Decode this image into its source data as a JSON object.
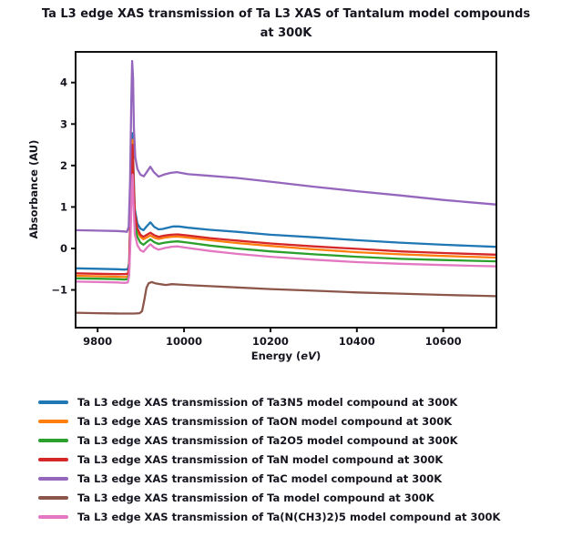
{
  "chart_data": {
    "type": "line",
    "title": "Ta L3 edge XAS transmission of Ta L3 XAS of Tantalum model compounds\nat 300K",
    "xlabel": {
      "prefix": "Energy (",
      "italic": "eV",
      "suffix": ")"
    },
    "ylabel": "Absorbance (AU)",
    "xlim": [
      9749,
      10723
    ],
    "ylim": [
      -1.91,
      4.74
    ],
    "xticks": [
      9800,
      10000,
      10200,
      10400,
      10600
    ],
    "yticks": [
      4,
      3,
      2,
      1,
      0,
      -1
    ],
    "grid": false,
    "legend_position": "below",
    "background": "#ffffff",
    "frame_color": "#111111",
    "text_color": "#15151f",
    "series": [
      {
        "name": "Ta L3 edge XAS transmission of Ta3N5 model compound at 300K",
        "color": "#1f77b4",
        "points": [
          [
            9749,
            -0.48
          ],
          [
            9800,
            -0.49
          ],
          [
            9845,
            -0.5
          ],
          [
            9862,
            -0.51
          ],
          [
            9870,
            -0.5
          ],
          [
            9873,
            -0.35
          ],
          [
            9876,
            0.85
          ],
          [
            9879,
            2.3
          ],
          [
            9881,
            2.78
          ],
          [
            9883,
            1.9
          ],
          [
            9886,
            0.95
          ],
          [
            9892,
            0.6
          ],
          [
            9899,
            0.48
          ],
          [
            9906,
            0.44
          ],
          [
            9914,
            0.54
          ],
          [
            9922,
            0.63
          ],
          [
            9931,
            0.52
          ],
          [
            9941,
            0.46
          ],
          [
            9950,
            0.47
          ],
          [
            9962,
            0.5
          ],
          [
            9975,
            0.53
          ],
          [
            9988,
            0.53
          ],
          [
            10010,
            0.5
          ],
          [
            10060,
            0.45
          ],
          [
            10122,
            0.4
          ],
          [
            10200,
            0.33
          ],
          [
            10300,
            0.27
          ],
          [
            10400,
            0.2
          ],
          [
            10500,
            0.14
          ],
          [
            10600,
            0.09
          ],
          [
            10722,
            0.04
          ]
        ]
      },
      {
        "name": "Ta L3 edge XAS transmission of TaON model compound at 300K",
        "color": "#ff7f0e",
        "points": [
          [
            9749,
            -0.66
          ],
          [
            9800,
            -0.67
          ],
          [
            9845,
            -0.68
          ],
          [
            9862,
            -0.69
          ],
          [
            9870,
            -0.68
          ],
          [
            9873,
            -0.5
          ],
          [
            9876,
            0.6
          ],
          [
            9879,
            2.1
          ],
          [
            9881,
            2.62
          ],
          [
            9883,
            1.7
          ],
          [
            9886,
            0.8
          ],
          [
            9892,
            0.42
          ],
          [
            9899,
            0.28
          ],
          [
            9906,
            0.22
          ],
          [
            9914,
            0.27
          ],
          [
            9922,
            0.31
          ],
          [
            9931,
            0.26
          ],
          [
            9941,
            0.23
          ],
          [
            9955,
            0.26
          ],
          [
            9970,
            0.28
          ],
          [
            9985,
            0.29
          ],
          [
            10010,
            0.26
          ],
          [
            10060,
            0.2
          ],
          [
            10122,
            0.13
          ],
          [
            10200,
            0.06
          ],
          [
            10300,
            -0.02
          ],
          [
            10400,
            -0.09
          ],
          [
            10500,
            -0.14
          ],
          [
            10600,
            -0.18
          ],
          [
            10722,
            -0.22
          ]
        ]
      },
      {
        "name": "Ta L3 edge XAS transmission of Ta2O5 model compound at 300K",
        "color": "#2ca02c",
        "points": [
          [
            9749,
            -0.72
          ],
          [
            9800,
            -0.73
          ],
          [
            9845,
            -0.74
          ],
          [
            9862,
            -0.75
          ],
          [
            9870,
            -0.74
          ],
          [
            9873,
            -0.58
          ],
          [
            9876,
            0.45
          ],
          [
            9879,
            1.9
          ],
          [
            9881,
            2.35
          ],
          [
            9883,
            1.45
          ],
          [
            9886,
            0.62
          ],
          [
            9892,
            0.28
          ],
          [
            9899,
            0.14
          ],
          [
            9906,
            0.09
          ],
          [
            9914,
            0.16
          ],
          [
            9922,
            0.22
          ],
          [
            9931,
            0.15
          ],
          [
            9941,
            0.11
          ],
          [
            9955,
            0.14
          ],
          [
            9970,
            0.16
          ],
          [
            9985,
            0.17
          ],
          [
            10010,
            0.14
          ],
          [
            10060,
            0.07
          ],
          [
            10122,
            0.0
          ],
          [
            10200,
            -0.07
          ],
          [
            10300,
            -0.14
          ],
          [
            10400,
            -0.2
          ],
          [
            10500,
            -0.25
          ],
          [
            10600,
            -0.28
          ],
          [
            10722,
            -0.31
          ]
        ]
      },
      {
        "name": "Ta L3 edge XAS transmission of TaN model compound at 300K",
        "color": "#d62728",
        "points": [
          [
            9749,
            -0.6
          ],
          [
            9800,
            -0.61
          ],
          [
            9845,
            -0.62
          ],
          [
            9862,
            -0.62
          ],
          [
            9870,
            -0.61
          ],
          [
            9873,
            -0.45
          ],
          [
            9876,
            0.75
          ],
          [
            9879,
            2.05
          ],
          [
            9881,
            2.5
          ],
          [
            9883,
            1.6
          ],
          [
            9886,
            0.85
          ],
          [
            9892,
            0.48
          ],
          [
            9899,
            0.33
          ],
          [
            9906,
            0.28
          ],
          [
            9914,
            0.33
          ],
          [
            9922,
            0.38
          ],
          [
            9931,
            0.32
          ],
          [
            9941,
            0.28
          ],
          [
            9955,
            0.31
          ],
          [
            9970,
            0.33
          ],
          [
            9985,
            0.34
          ],
          [
            10010,
            0.31
          ],
          [
            10060,
            0.25
          ],
          [
            10122,
            0.19
          ],
          [
            10200,
            0.12
          ],
          [
            10300,
            0.05
          ],
          [
            10400,
            -0.01
          ],
          [
            10500,
            -0.07
          ],
          [
            10600,
            -0.11
          ],
          [
            10722,
            -0.15
          ]
        ]
      },
      {
        "name": "Ta L3 edge XAS transmission of TaC model compound at 300K",
        "color": "#9467bd",
        "points": [
          [
            9749,
            0.44
          ],
          [
            9800,
            0.43
          ],
          [
            9845,
            0.42
          ],
          [
            9862,
            0.41
          ],
          [
            9868,
            0.4
          ],
          [
            9872,
            0.52
          ],
          [
            9875,
            1.6
          ],
          [
            9878,
            3.6
          ],
          [
            9880,
            4.52
          ],
          [
            9882,
            4.1
          ],
          [
            9884,
            2.9
          ],
          [
            9887,
            2.2
          ],
          [
            9892,
            1.92
          ],
          [
            9899,
            1.78
          ],
          [
            9907,
            1.74
          ],
          [
            9915,
            1.86
          ],
          [
            9922,
            1.97
          ],
          [
            9930,
            1.84
          ],
          [
            9941,
            1.73
          ],
          [
            9953,
            1.78
          ],
          [
            9968,
            1.82
          ],
          [
            9983,
            1.84
          ],
          [
            10010,
            1.79
          ],
          [
            10060,
            1.75
          ],
          [
            10122,
            1.7
          ],
          [
            10200,
            1.61
          ],
          [
            10300,
            1.49
          ],
          [
            10400,
            1.38
          ],
          [
            10500,
            1.28
          ],
          [
            10600,
            1.17
          ],
          [
            10722,
            1.06
          ]
        ]
      },
      {
        "name": "Ta L3 edge XAS transmission of Ta model compound at 300K",
        "color": "#8c564b",
        "points": [
          [
            9749,
            -1.55
          ],
          [
            9800,
            -1.56
          ],
          [
            9850,
            -1.57
          ],
          [
            9885,
            -1.57
          ],
          [
            9897,
            -1.56
          ],
          [
            9903,
            -1.51
          ],
          [
            9908,
            -1.25
          ],
          [
            9913,
            -0.95
          ],
          [
            9918,
            -0.84
          ],
          [
            9925,
            -0.81
          ],
          [
            9933,
            -0.84
          ],
          [
            9945,
            -0.86
          ],
          [
            9958,
            -0.88
          ],
          [
            9972,
            -0.86
          ],
          [
            9988,
            -0.87
          ],
          [
            10020,
            -0.89
          ],
          [
            10060,
            -0.91
          ],
          [
            10122,
            -0.94
          ],
          [
            10200,
            -0.98
          ],
          [
            10300,
            -1.02
          ],
          [
            10400,
            -1.06
          ],
          [
            10500,
            -1.09
          ],
          [
            10600,
            -1.12
          ],
          [
            10722,
            -1.15
          ]
        ]
      },
      {
        "name": "Ta L3 edge XAS transmission of Ta(N(CH3)2)5 model compound at 300K",
        "color": "#e377c2",
        "points": [
          [
            9749,
            -0.8
          ],
          [
            9800,
            -0.81
          ],
          [
            9845,
            -0.82
          ],
          [
            9862,
            -0.83
          ],
          [
            9870,
            -0.82
          ],
          [
            9873,
            -0.65
          ],
          [
            9876,
            0.2
          ],
          [
            9879,
            1.4
          ],
          [
            9881,
            1.78
          ],
          [
            9883,
            1.1
          ],
          [
            9886,
            0.35
          ],
          [
            9892,
            0.08
          ],
          [
            9899,
            -0.04
          ],
          [
            9906,
            -0.08
          ],
          [
            9914,
            0.02
          ],
          [
            9922,
            0.1
          ],
          [
            9931,
            0.02
          ],
          [
            9941,
            -0.03
          ],
          [
            9955,
            0.01
          ],
          [
            9970,
            0.04
          ],
          [
            9985,
            0.05
          ],
          [
            10010,
            0.01
          ],
          [
            10060,
            -0.06
          ],
          [
            10122,
            -0.13
          ],
          [
            10200,
            -0.2
          ],
          [
            10300,
            -0.27
          ],
          [
            10400,
            -0.33
          ],
          [
            10500,
            -0.37
          ],
          [
            10600,
            -0.4
          ],
          [
            10722,
            -0.43
          ]
        ]
      }
    ]
  }
}
